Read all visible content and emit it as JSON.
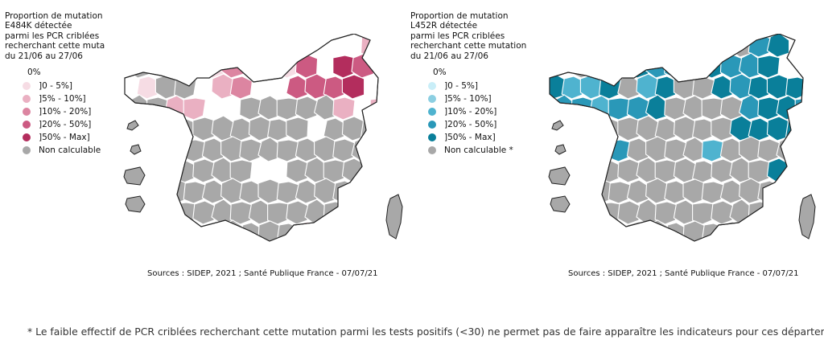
{
  "maps": [
    {
      "legend_title": [
        "Proportion de mutation",
        "E484K détectée",
        "parmi les PCR criblées",
        "recherchant cette muta",
        "du 21/06 au 27/06"
      ],
      "zero_label": "0%",
      "legend_items": [
        {
          "label": "]0 - 5%]",
          "color": "#f6dce4"
        },
        {
          "label": "]5% - 10%]",
          "color": "#eab0c2"
        },
        {
          "label": "]10% - 20%]",
          "color": "#dc85a1"
        },
        {
          "label": "]20% - 50%]",
          "color": "#cc5a82"
        },
        {
          "label": "]50% - Max]",
          "color": "#b32d5d"
        },
        {
          "label": "Non calculable",
          "color": "#a8a8a8"
        }
      ],
      "source": "Sources : SIDEP, 2021 ; Santé Publique France - 07/07/21"
    },
    {
      "legend_title": [
        "Proportion de mutation",
        "L452R  détectée",
        "parmi les PCR criblées",
        "recherchant cette mutation",
        "du 21/06 au 27/06"
      ],
      "zero_label": "0%",
      "legend_items": [
        {
          "label": "]0 - 5%]",
          "color": "#c9eef8"
        },
        {
          "label": "]5% - 10%]",
          "color": "#8ccfe2"
        },
        {
          "label": "]10% - 20%]",
          "color": "#4fb3cf"
        },
        {
          "label": "]20% - 50%]",
          "color": "#2a98b8"
        },
        {
          "label": "]50% - Max]",
          "color": "#0a7f9a"
        },
        {
          "label": "Non calculable *",
          "color": "#a8a8a8"
        }
      ],
      "source": "Sources : SIDEP, 2021 ; Santé Publique France - 07/07/21"
    }
  ],
  "footnote": "* Le faible effectif de PCR criblées recherchant cette mutation parmi les tests positifs (<30) ne permet pas de faire apparaître les indicateurs pour ces départements"
}
